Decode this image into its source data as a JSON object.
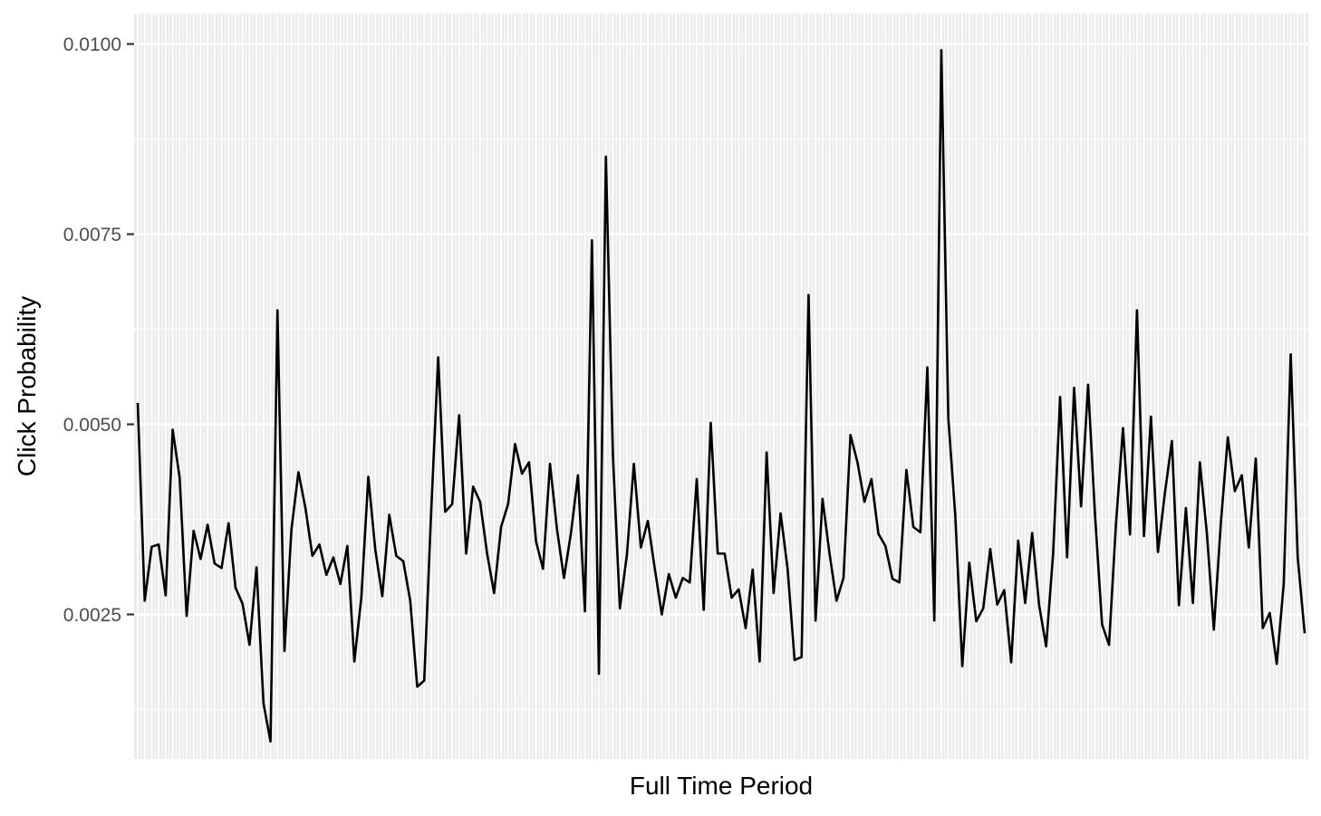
{
  "chart_data": {
    "type": "line",
    "title": "",
    "xlabel": "Full Time Period",
    "ylabel": "Click Probability",
    "ylim": [
      0.0006,
      0.0104
    ],
    "y_ticks": [
      0.0025,
      0.005,
      0.0075,
      0.01
    ],
    "y_tick_labels": [
      "0.0025",
      "0.0050",
      "0.0075",
      "0.0100"
    ],
    "x_tick_labels_shown": false,
    "grid": true,
    "panel_background": "#ebebeb",
    "grid_color": "#ffffff",
    "line_color": "#000000",
    "series": [
      {
        "values": [
          0.00528,
          0.00268,
          0.00339,
          0.00342,
          0.00275,
          0.00493,
          0.0043,
          0.00248,
          0.0036,
          0.00323,
          0.00368,
          0.00317,
          0.00311,
          0.0037,
          0.00285,
          0.00264,
          0.0021,
          0.00312,
          0.00133,
          0.00083,
          0.0065,
          0.00202,
          0.00362,
          0.00437,
          0.0039,
          0.00327,
          0.00342,
          0.00302,
          0.00325,
          0.0029,
          0.0034,
          0.00188,
          0.00272,
          0.00431,
          0.00335,
          0.00274,
          0.00381,
          0.00327,
          0.0032,
          0.00268,
          0.00155,
          0.00163,
          0.00386,
          0.00588,
          0.00385,
          0.00395,
          0.00512,
          0.0033,
          0.00418,
          0.00398,
          0.0033,
          0.00278,
          0.00365,
          0.00395,
          0.00474,
          0.00435,
          0.0045,
          0.00346,
          0.0031,
          0.00448,
          0.00362,
          0.00298,
          0.00357,
          0.00433,
          0.00254,
          0.00742,
          0.00172,
          0.00852,
          0.0046,
          0.00258,
          0.00328,
          0.00448,
          0.00338,
          0.00373,
          0.0031,
          0.0025,
          0.00303,
          0.00272,
          0.00298,
          0.00292,
          0.00428,
          0.00256,
          0.00502,
          0.0033,
          0.0033,
          0.00272,
          0.00283,
          0.00232,
          0.00309,
          0.00188,
          0.00463,
          0.00278,
          0.00383,
          0.0031,
          0.0019,
          0.00194,
          0.0067,
          0.00242,
          0.00402,
          0.0033,
          0.00268,
          0.00298,
          0.00486,
          0.0045,
          0.00398,
          0.00428,
          0.00356,
          0.0034,
          0.00297,
          0.00292,
          0.0044,
          0.00365,
          0.00358,
          0.00575,
          0.00242,
          0.00992,
          0.00508,
          0.0038,
          0.00182,
          0.00318,
          0.00241,
          0.00258,
          0.00336,
          0.00263,
          0.00282,
          0.00187,
          0.00347,
          0.00265,
          0.00357,
          0.00262,
          0.00208,
          0.0033,
          0.00536,
          0.00325,
          0.00548,
          0.00392,
          0.00552,
          0.0038,
          0.00237,
          0.0021,
          0.0037,
          0.00495,
          0.00355,
          0.0065,
          0.00353,
          0.0051,
          0.00332,
          0.0041,
          0.00478,
          0.00262,
          0.0039,
          0.00265,
          0.0045,
          0.00357,
          0.0023,
          0.0037,
          0.00483,
          0.00412,
          0.00433,
          0.00338,
          0.00455,
          0.00232,
          0.00252,
          0.00185,
          0.0029,
          0.00592,
          0.00325,
          0.00225
        ]
      }
    ]
  }
}
